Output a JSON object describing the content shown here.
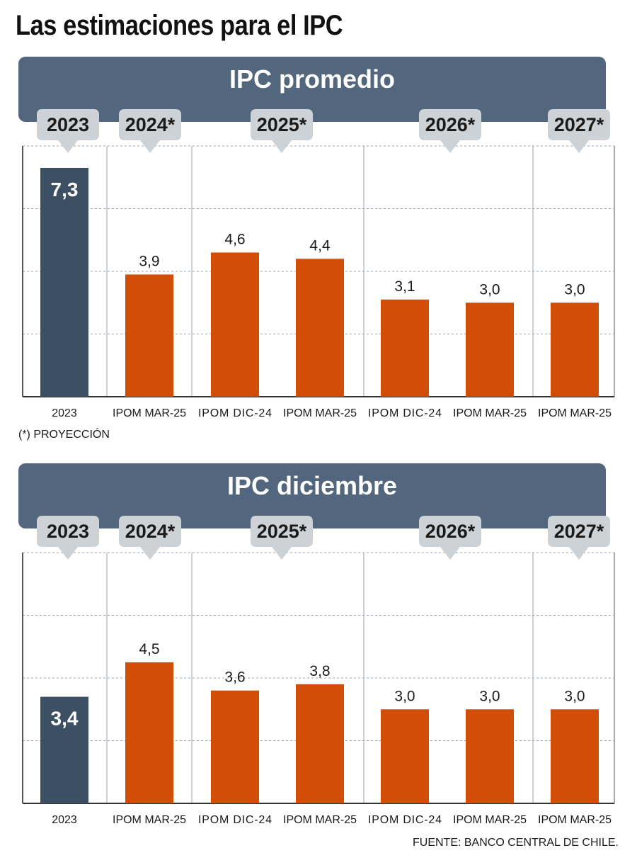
{
  "title": "Las estimaciones para el IPC",
  "footnote": "(*) PROYECCIÓN",
  "source": "FUENTE: BANCO CENTRAL DE CHILE.",
  "colors": {
    "header": "#52677d",
    "badge": "#cdd2d6",
    "actual_bar": "#3c5064",
    "forecast_bar": "#d24e08",
    "grid": "#9aa3ab"
  },
  "chart_data": [
    {
      "type": "bar",
      "title": "IPC promedio",
      "groups": [
        "2023",
        "2024*",
        "2025*",
        "2026*",
        "2027*"
      ],
      "categories": [
        "2023",
        "IPOM MAR-25",
        "IPOM DIC-24",
        "IPOM MAR-25",
        "IPOM DIC-24",
        "IPOM MAR-25",
        "IPOM MAR-25"
      ],
      "category_group": [
        0,
        1,
        2,
        2,
        3,
        3,
        4
      ],
      "values": [
        7.3,
        3.9,
        4.6,
        4.4,
        3.1,
        3.0,
        3.0
      ],
      "value_labels": [
        "7,3",
        "3,9",
        "4,6",
        "4,4",
        "3,1",
        "3,0",
        "3,0"
      ],
      "bar_kind": [
        "actual",
        "forecast",
        "forecast",
        "forecast",
        "forecast",
        "forecast",
        "forecast"
      ],
      "ylim": [
        0,
        8
      ],
      "grid": true
    },
    {
      "type": "bar",
      "title": "IPC diciembre",
      "groups": [
        "2023",
        "2024*",
        "2025*",
        "2026*",
        "2027*"
      ],
      "categories": [
        "2023",
        "IPOM MAR-25",
        "IPOM DIC-24",
        "IPOM MAR-25",
        "IPOM DIC-24",
        "IPOM MAR-25",
        "IPOM MAR-25"
      ],
      "category_group": [
        0,
        1,
        2,
        2,
        3,
        3,
        4
      ],
      "values": [
        3.4,
        4.5,
        3.6,
        3.8,
        3.0,
        3.0,
        3.0
      ],
      "value_labels": [
        "3,4",
        "4,5",
        "3,6",
        "3,8",
        "3,0",
        "3,0",
        "3,0"
      ],
      "bar_kind": [
        "actual",
        "forecast",
        "forecast",
        "forecast",
        "forecast",
        "forecast",
        "forecast"
      ],
      "ylim": [
        0,
        8
      ],
      "grid": true
    }
  ]
}
